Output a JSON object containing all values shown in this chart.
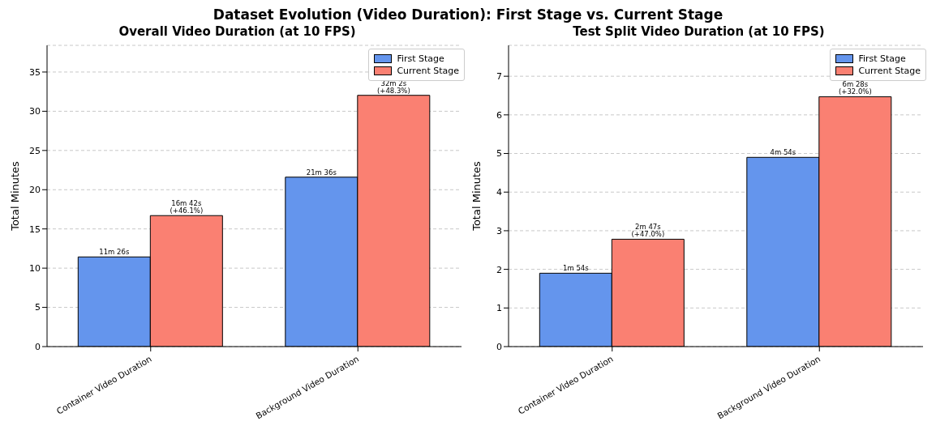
{
  "chart_data": [
    {
      "type": "other",
      "title": "Dataset Evolution (Video Duration): First Stage vs. Current Stage"
    },
    {
      "type": "bar",
      "title": "Overall Video Duration (at 10 FPS)",
      "ylabel": "Total Minutes",
      "categories": [
        "Container Video Duration",
        "Background Video Duration"
      ],
      "series": [
        {
          "name": "First Stage",
          "color": "#6495ed",
          "values": [
            11.43,
            21.6
          ]
        },
        {
          "name": "Current Stage",
          "color": "#fa8072",
          "values": [
            16.7,
            32.03
          ]
        }
      ],
      "annotations": [
        {
          "text": "11m 26s",
          "x": "Container Video Duration",
          "y": 11.43
        },
        {
          "text": "21m 36s",
          "x": "Background Video Duration",
          "y": 21.6
        },
        "16m 42s\n(+46.1%)",
        "32m 2s\n(+48.3%)"
      ],
      "ylim": [
        0,
        38.4
      ],
      "yticks": [
        0,
        5,
        10,
        15,
        20,
        25,
        30,
        35
      ],
      "grid": "y",
      "legend": "top right"
    },
    {
      "type": "bar",
      "title": "Test Split Video Duration (at 10 FPS)",
      "ylabel": "Total Minutes",
      "categories": [
        "Container Video Duration",
        "Background Video Duration"
      ],
      "series": [
        {
          "name": "First Stage",
          "color": "#6495ed",
          "values": [
            1.9,
            4.9
          ]
        },
        {
          "name": "Current Stage",
          "color": "#fa8072",
          "values": [
            2.78,
            6.47
          ]
        }
      ],
      "annotations": [
        {
          "text": "1m 54s",
          "x": "Container Video Duration",
          "y": 1.9
        },
        {
          "text": "4m 54s",
          "x": "Background Video Duration",
          "y": 4.9
        },
        "2m 47s\n(+47.0%)",
        "6m 28s\n(+32.0%)"
      ],
      "ylim": [
        0,
        7.8
      ],
      "yticks": [
        0,
        1,
        2,
        3,
        4,
        5,
        6,
        7
      ],
      "grid": "y",
      "legend": "top right"
    }
  ]
}
